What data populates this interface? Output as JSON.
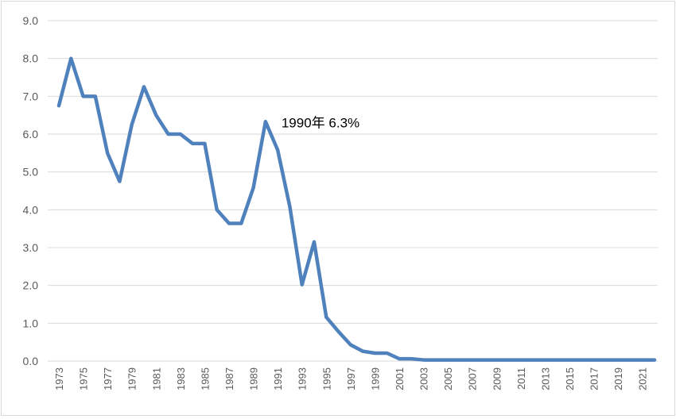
{
  "chart_data": {
    "type": "line",
    "title": "",
    "xlabel": "",
    "ylabel": "",
    "ylim": [
      0,
      9
    ],
    "yticks": [
      "0.0",
      "1.0",
      "2.0",
      "3.0",
      "4.0",
      "5.0",
      "6.0",
      "7.0",
      "8.0",
      "9.0"
    ],
    "xtick_labels": [
      "1973",
      "1975",
      "1977",
      "1979",
      "1981",
      "1983",
      "1985",
      "1987",
      "1989",
      "1991",
      "1993",
      "1995",
      "1997",
      "1999",
      "2001",
      "2003",
      "2005",
      "2007",
      "2009",
      "2011",
      "2013",
      "2015",
      "2017",
      "2019",
      "2021"
    ],
    "grid": true,
    "legend": "none",
    "line_color": "#4f81bd",
    "x": [
      1973,
      1974,
      1975,
      1976,
      1977,
      1978,
      1979,
      1980,
      1981,
      1982,
      1983,
      1984,
      1985,
      1986,
      1987,
      1988,
      1989,
      1990,
      1991,
      1992,
      1993,
      1994,
      1995,
      1996,
      1997,
      1998,
      1999,
      2000,
      2001,
      2002,
      2003,
      2004,
      2005,
      2006,
      2007,
      2008,
      2009,
      2010,
      2011,
      2012,
      2013,
      2014,
      2015,
      2016,
      2017,
      2018,
      2019,
      2020,
      2021,
      2022
    ],
    "series": [
      {
        "values": [
          6.75,
          8.0,
          7.0,
          7.0,
          5.5,
          4.75,
          6.25,
          7.25,
          6.5,
          6.0,
          6.0,
          5.75,
          5.75,
          4.0,
          3.64,
          3.64,
          4.58,
          6.33,
          5.58,
          4.08,
          2.02,
          3.15,
          1.16,
          0.78,
          0.43,
          0.26,
          0.21,
          0.21,
          0.06,
          0.06,
          0.03,
          0.03,
          0.03,
          0.03,
          0.03,
          0.03,
          0.03,
          0.03,
          0.03,
          0.03,
          0.03,
          0.03,
          0.03,
          0.03,
          0.03,
          0.03,
          0.03,
          0.03,
          0.03,
          0.03
        ]
      }
    ],
    "annotations": [
      {
        "x": 1990,
        "y": 6.3,
        "text": "1990年  6.3%"
      }
    ]
  }
}
